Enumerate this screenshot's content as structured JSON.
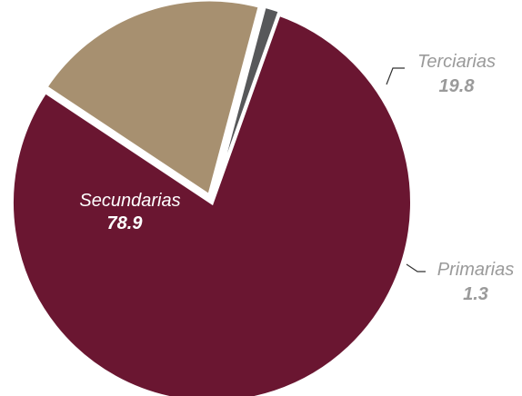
{
  "chart_data": {
    "type": "pie",
    "title": "",
    "slices": [
      {
        "label": "Secundarias",
        "value": 78.9,
        "display": "78.9",
        "color": "#6a1631",
        "label_color": "#ffffff"
      },
      {
        "label": "Terciarias",
        "value": 19.8,
        "display": "19.8",
        "color": "#a79070",
        "label_color": "#9a9a9a"
      },
      {
        "label": "Primarias",
        "value": 1.3,
        "display": "1.3",
        "color": "#57585a",
        "label_color": "#9a9a9a"
      }
    ],
    "exploded": [
      "Terciarias",
      "Primarias"
    ],
    "legend": "none",
    "labels_placement": "inside for Secundarias, outside with leader lines for Terciarias and Primarias"
  }
}
